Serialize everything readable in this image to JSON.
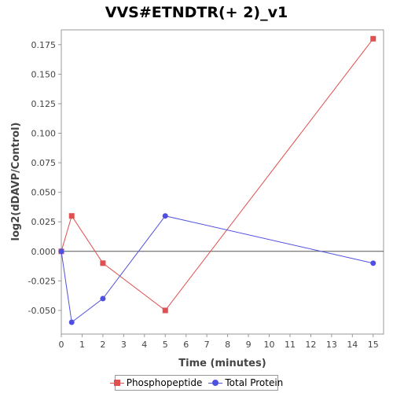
{
  "chart_data": {
    "type": "line",
    "title": "VVS#ETNDTR(+ 2)_v1",
    "xlabel": "Time (minutes)",
    "ylabel": "log2(dDAVP/Control)",
    "xlim": [
      0,
      15.5
    ],
    "ylim": [
      -0.07,
      0.1875
    ],
    "x_ticks": [
      0,
      1,
      2,
      3,
      4,
      5,
      6,
      7,
      8,
      9,
      10,
      11,
      12,
      13,
      14,
      15
    ],
    "y_ticks": [
      -0.05,
      -0.025,
      0.0,
      0.025,
      0.05,
      0.075,
      0.1,
      0.125,
      0.15,
      0.175
    ],
    "y_tick_labels": [
      "-0.050",
      "-0.025",
      "0.000",
      "0.025",
      "0.050",
      "0.075",
      "0.100",
      "0.125",
      "0.150",
      "0.175"
    ],
    "grid": false,
    "legend_position": "bottom",
    "series": [
      {
        "name": "Phosphopeptide",
        "color": "#e05050",
        "marker": "square",
        "x": [
          0,
          0.5,
          2,
          5,
          15
        ],
        "y": [
          0.0,
          0.03,
          -0.01,
          -0.05,
          0.18
        ]
      },
      {
        "name": "Total Protein",
        "color": "#5050e0",
        "marker": "circle",
        "x": [
          0,
          0.5,
          2,
          5,
          15
        ],
        "y": [
          0.0,
          -0.06,
          -0.04,
          0.03,
          -0.01
        ]
      }
    ]
  }
}
